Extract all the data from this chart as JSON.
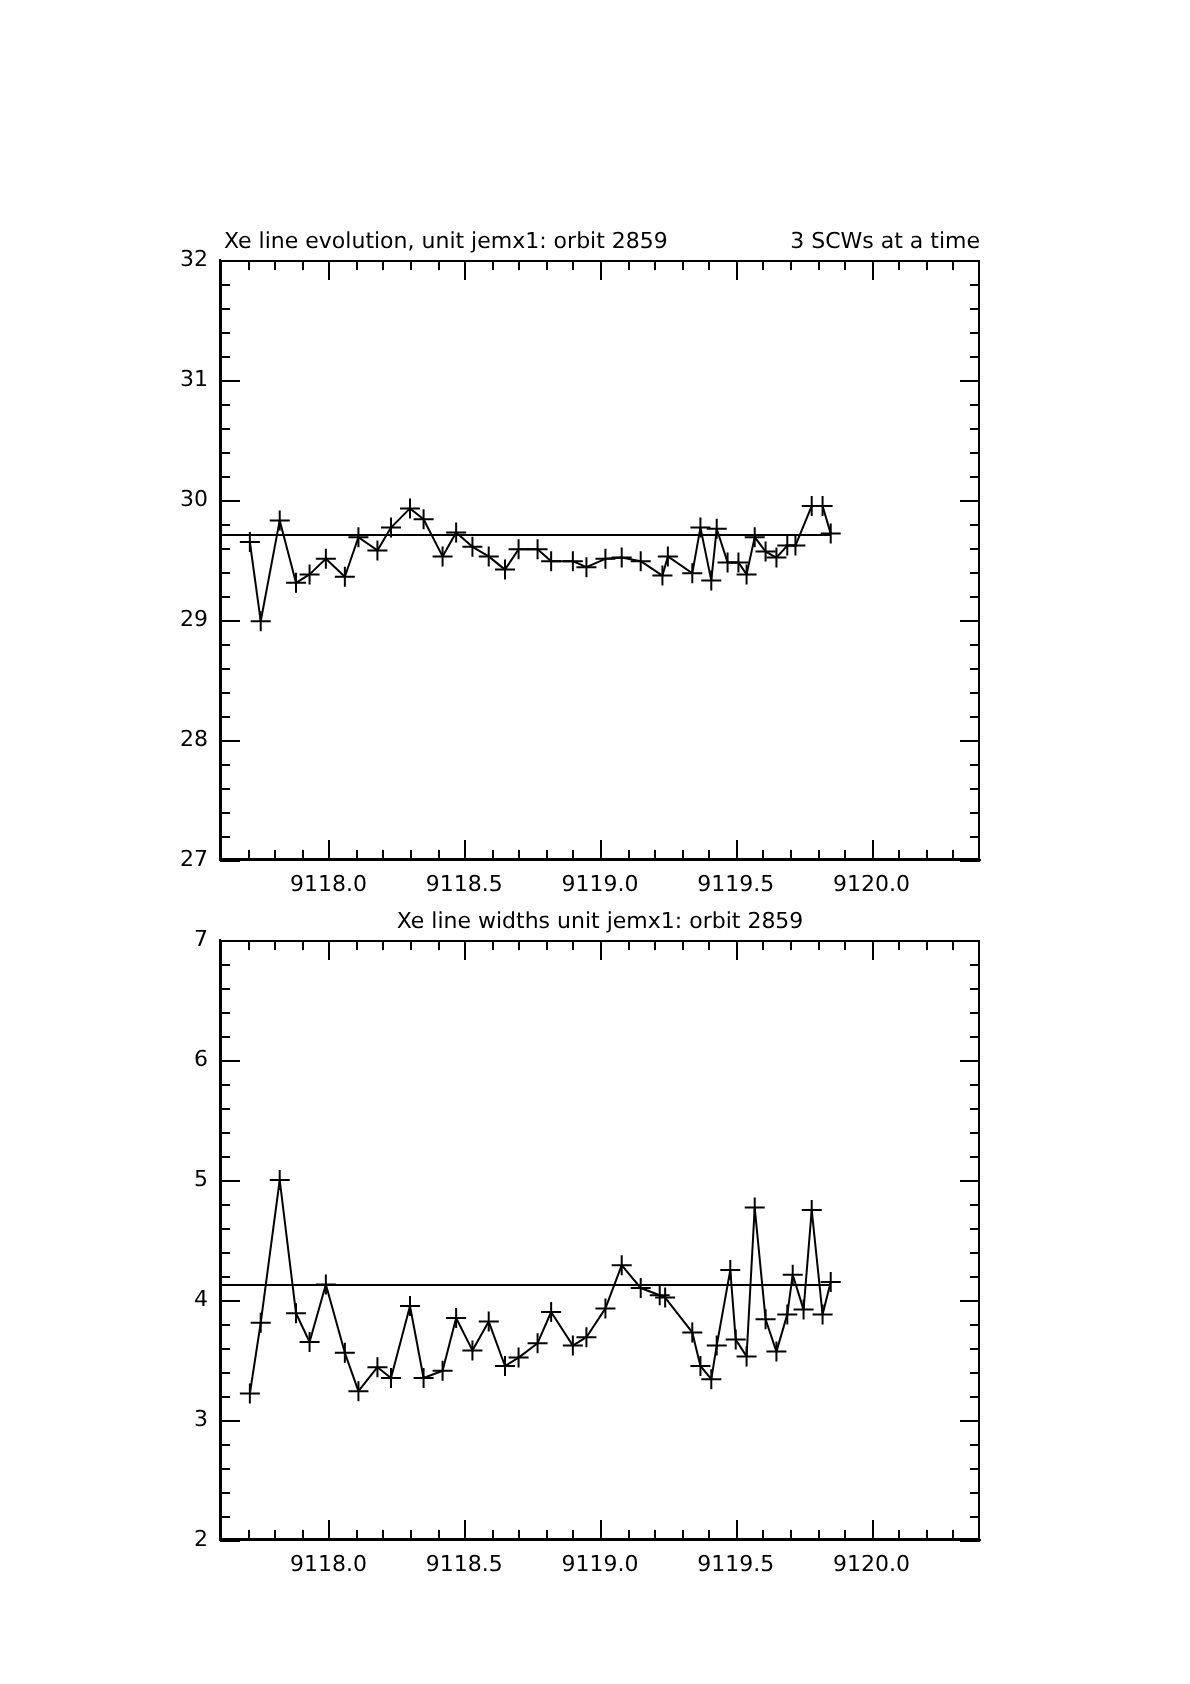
{
  "chart_data": [
    {
      "type": "line",
      "title": "Xe line evolution, unit jemx1: orbit 2859",
      "subtitle": "3 SCWs at a time",
      "marker": "cross",
      "grid": false,
      "xlim": [
        9117.6,
        9120.4
      ],
      "xticks": [
        {
          "value": 9117.7,
          "label": null
        },
        {
          "value": 9117.8,
          "label": null
        },
        {
          "value": 9117.9,
          "label": null
        },
        {
          "value": 9118.0,
          "label": "9118.0"
        },
        {
          "value": 9118.1,
          "label": null
        },
        {
          "value": 9118.2,
          "label": null
        },
        {
          "value": 9118.3,
          "label": null
        },
        {
          "value": 9118.4,
          "label": null
        },
        {
          "value": 9118.5,
          "label": "9118.5"
        },
        {
          "value": 9118.6,
          "label": null
        },
        {
          "value": 9118.7,
          "label": null
        },
        {
          "value": 9118.8,
          "label": null
        },
        {
          "value": 9118.9,
          "label": null
        },
        {
          "value": 9119.0,
          "label": "9119.0"
        },
        {
          "value": 9119.1,
          "label": null
        },
        {
          "value": 9119.2,
          "label": null
        },
        {
          "value": 9119.3,
          "label": null
        },
        {
          "value": 9119.4,
          "label": null
        },
        {
          "value": 9119.5,
          "label": "9119.5"
        },
        {
          "value": 9119.6,
          "label": null
        },
        {
          "value": 9119.7,
          "label": null
        },
        {
          "value": 9119.8,
          "label": null
        },
        {
          "value": 9119.9,
          "label": null
        },
        {
          "value": 9120.0,
          "label": "9120.0"
        },
        {
          "value": 9120.1,
          "label": null
        },
        {
          "value": 9120.2,
          "label": null
        },
        {
          "value": 9120.3,
          "label": null
        }
      ],
      "ylim": [
        27,
        32
      ],
      "yticks": [
        27,
        {
          "value": 27.2,
          "label": null
        },
        {
          "value": 27.4,
          "label": null
        },
        {
          "value": 27.6,
          "label": null
        },
        {
          "value": 27.8,
          "label": null
        },
        28,
        {
          "value": 28.2,
          "label": null
        },
        {
          "value": 28.4,
          "label": null
        },
        {
          "value": 28.6,
          "label": null
        },
        {
          "value": 28.8,
          "label": null
        },
        29,
        {
          "value": 29.2,
          "label": null
        },
        {
          "value": 29.4,
          "label": null
        },
        {
          "value": 29.6,
          "label": null
        },
        {
          "value": 29.8,
          "label": null
        },
        30,
        {
          "value": 30.2,
          "label": null
        },
        {
          "value": 30.4,
          "label": null
        },
        {
          "value": 30.6,
          "label": null
        },
        {
          "value": 30.8,
          "label": null
        },
        31,
        {
          "value": 31.2,
          "label": null
        },
        {
          "value": 31.4,
          "label": null
        },
        {
          "value": 31.6,
          "label": null
        },
        {
          "value": 31.8,
          "label": null
        },
        32
      ],
      "x": [
        9117.71,
        9117.75,
        9117.82,
        9117.88,
        9117.93,
        9117.99,
        9118.06,
        9118.11,
        9118.18,
        9118.23,
        9118.3,
        9118.35,
        9118.42,
        9118.47,
        9118.53,
        9118.59,
        9118.65,
        9118.7,
        9118.77,
        9118.82,
        9118.9,
        9118.95,
        9119.02,
        9119.08,
        9119.15,
        9119.23,
        9119.25,
        9119.34,
        9119.37,
        9119.41,
        9119.43,
        9119.47,
        9119.51,
        9119.54,
        9119.57,
        9119.61,
        9119.65,
        9119.69,
        9119.72,
        9119.78,
        9119.82,
        9119.85
      ],
      "series": [
        {
          "color": "#000000",
          "values": [
            29.65,
            28.99,
            29.83,
            29.31,
            29.38,
            29.51,
            29.36,
            29.69,
            29.58,
            29.77,
            29.93,
            29.84,
            29.53,
            29.73,
            29.61,
            29.53,
            29.42,
            29.59,
            29.59,
            29.49,
            29.49,
            29.44,
            29.51,
            29.52,
            29.49,
            29.37,
            29.53,
            29.39,
            29.77,
            29.33,
            29.76,
            29.48,
            29.48,
            29.38,
            29.69,
            29.57,
            29.52,
            29.62,
            29.62,
            29.95,
            29.95,
            29.72
          ]
        }
      ],
      "ref_lines": [
        {
          "axis": "y",
          "value": 29.72,
          "color": "#000000"
        }
      ]
    },
    {
      "type": "line",
      "title": "Xe line widths unit jemx1: orbit 2859",
      "marker": "cross",
      "grid": false,
      "xlim": [
        9117.6,
        9120.4
      ],
      "xticks": [
        {
          "value": 9117.7,
          "label": null
        },
        {
          "value": 9117.8,
          "label": null
        },
        {
          "value": 9117.9,
          "label": null
        },
        {
          "value": 9118.0,
          "label": "9118.0"
        },
        {
          "value": 9118.1,
          "label": null
        },
        {
          "value": 9118.2,
          "label": null
        },
        {
          "value": 9118.3,
          "label": null
        },
        {
          "value": 9118.4,
          "label": null
        },
        {
          "value": 9118.5,
          "label": "9118.5"
        },
        {
          "value": 9118.6,
          "label": null
        },
        {
          "value": 9118.7,
          "label": null
        },
        {
          "value": 9118.8,
          "label": null
        },
        {
          "value": 9118.9,
          "label": null
        },
        {
          "value": 9119.0,
          "label": "9119.0"
        },
        {
          "value": 9119.1,
          "label": null
        },
        {
          "value": 9119.2,
          "label": null
        },
        {
          "value": 9119.3,
          "label": null
        },
        {
          "value": 9119.4,
          "label": null
        },
        {
          "value": 9119.5,
          "label": "9119.5"
        },
        {
          "value": 9119.6,
          "label": null
        },
        {
          "value": 9119.7,
          "label": null
        },
        {
          "value": 9119.8,
          "label": null
        },
        {
          "value": 9119.9,
          "label": null
        },
        {
          "value": 9120.0,
          "label": "9120.0"
        },
        {
          "value": 9120.1,
          "label": null
        },
        {
          "value": 9120.2,
          "label": null
        },
        {
          "value": 9120.3,
          "label": null
        }
      ],
      "ylim": [
        2,
        7
      ],
      "yticks": [
        2,
        {
          "value": 2.2,
          "label": null
        },
        {
          "value": 2.4,
          "label": null
        },
        {
          "value": 2.6,
          "label": null
        },
        {
          "value": 2.8,
          "label": null
        },
        3,
        {
          "value": 3.2,
          "label": null
        },
        {
          "value": 3.4,
          "label": null
        },
        {
          "value": 3.6,
          "label": null
        },
        {
          "value": 3.8,
          "label": null
        },
        4,
        {
          "value": 4.2,
          "label": null
        },
        {
          "value": 4.4,
          "label": null
        },
        {
          "value": 4.6,
          "label": null
        },
        {
          "value": 4.8,
          "label": null
        },
        5,
        {
          "value": 5.2,
          "label": null
        },
        {
          "value": 5.4,
          "label": null
        },
        {
          "value": 5.6,
          "label": null
        },
        {
          "value": 5.8,
          "label": null
        },
        6,
        {
          "value": 6.2,
          "label": null
        },
        {
          "value": 6.4,
          "label": null
        },
        {
          "value": 6.6,
          "label": null
        },
        {
          "value": 6.8,
          "label": null
        },
        7
      ],
      "x": [
        9117.71,
        9117.75,
        9117.82,
        9117.88,
        9117.93,
        9117.99,
        9118.06,
        9118.11,
        9118.18,
        9118.23,
        9118.3,
        9118.35,
        9118.42,
        9118.47,
        9118.53,
        9118.59,
        9118.65,
        9118.7,
        9118.77,
        9118.82,
        9118.9,
        9118.95,
        9119.02,
        9119.08,
        9119.15,
        9119.22,
        9119.24,
        9119.34,
        9119.37,
        9119.41,
        9119.43,
        9119.48,
        9119.5,
        9119.54,
        9119.57,
        9119.61,
        9119.65,
        9119.69,
        9119.71,
        9119.75,
        9119.78,
        9119.82,
        9119.85
      ],
      "series": [
        {
          "color": "#000000",
          "values": [
            3.22,
            3.81,
            5.0,
            3.89,
            3.65,
            4.13,
            3.56,
            3.24,
            3.44,
            3.35,
            3.95,
            3.35,
            3.41,
            3.85,
            3.58,
            3.82,
            3.45,
            3.52,
            3.64,
            3.9,
            3.62,
            3.69,
            3.93,
            4.29,
            4.1,
            4.04,
            4.02,
            3.73,
            3.45,
            3.34,
            3.62,
            4.25,
            3.67,
            3.53,
            4.77,
            3.84,
            3.57,
            3.88,
            4.21,
            3.92,
            4.75,
            3.88,
            4.15
          ]
        }
      ],
      "ref_lines": [
        {
          "axis": "y",
          "value": 4.14,
          "color": "#000000"
        }
      ]
    }
  ]
}
